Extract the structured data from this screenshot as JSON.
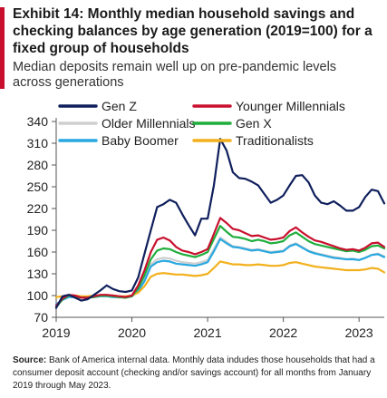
{
  "header": {
    "title": "Exhibit 14: Monthly median household savings and checking balances by age generation (2019=100)  for a fixed group of households",
    "subtitle": "Median deposits remain well up on pre-pandemic levels across generations"
  },
  "source": {
    "label": "Source:",
    "text": " Bank of America internal data. Monthly data indudes those households  that had a consumer deposit account  (checking  and/or savings account)  for all months from January 2019 through May 2023."
  },
  "colors": {
    "accent": "#c8102e"
  },
  "chart_data": {
    "type": "line",
    "title": "",
    "xlabel": "",
    "ylabel": "",
    "x": [
      "2019-01",
      "2019-02",
      "2019-03",
      "2019-04",
      "2019-05",
      "2019-06",
      "2019-07",
      "2019-08",
      "2019-09",
      "2019-10",
      "2019-11",
      "2019-12",
      "2020-01",
      "2020-02",
      "2020-03",
      "2020-04",
      "2020-05",
      "2020-06",
      "2020-07",
      "2020-08",
      "2020-09",
      "2020-10",
      "2020-11",
      "2020-12",
      "2021-01",
      "2021-02",
      "2021-03",
      "2021-04",
      "2021-05",
      "2021-06",
      "2021-07",
      "2021-08",
      "2021-09",
      "2021-10",
      "2021-11",
      "2021-12",
      "2022-01",
      "2022-02",
      "2022-03",
      "2022-04",
      "2022-05",
      "2022-06",
      "2022-07",
      "2022-08",
      "2022-09",
      "2022-10",
      "2022-11",
      "2022-12",
      "2023-01",
      "2023-02",
      "2023-03",
      "2023-04",
      "2023-05"
    ],
    "xticks": [
      "2019",
      "2020",
      "2021",
      "2022",
      "2023"
    ],
    "xlim": [
      "2019-01",
      "2023-05"
    ],
    "ylim": [
      70,
      340
    ],
    "yticks": [
      70,
      100,
      130,
      160,
      190,
      220,
      250,
      280,
      310,
      340
    ],
    "grid": false,
    "legend_position": "top",
    "series": [
      {
        "name": "Gen Z",
        "color": "#0f1f5c",
        "width": 2.2,
        "values": [
          83,
          99,
          101,
          97,
          93,
          95,
          101,
          107,
          114,
          109,
          106,
          105,
          107,
          125,
          158,
          190,
          222,
          226,
          232,
          228,
          212,
          197,
          183,
          206,
          206,
          252,
          316,
          300,
          270,
          262,
          261,
          257,
          252,
          240,
          228,
          232,
          238,
          252,
          265,
          266,
          256,
          238,
          228,
          226,
          230,
          224,
          217,
          217,
          222,
          236,
          246,
          244,
          227
        ]
      },
      {
        "name": "Younger Millennials",
        "color": "#c8102e",
        "width": 2.2,
        "values": [
          86,
          96,
          101,
          100,
          97,
          97,
          99,
          101,
          101,
          100,
          99,
          98,
          100,
          114,
          135,
          160,
          177,
          180,
          176,
          167,
          162,
          160,
          157,
          160,
          164,
          185,
          207,
          200,
          192,
          190,
          186,
          182,
          183,
          180,
          177,
          178,
          180,
          189,
          194,
          187,
          181,
          176,
          174,
          171,
          168,
          165,
          163,
          164,
          162,
          166,
          172,
          173,
          167
        ]
      },
      {
        "name": "Gen X",
        "color": "#1fae3c",
        "width": 2.2,
        "values": [
          84,
          95,
          100,
          99,
          97,
          97,
          98,
          100,
          100,
          99,
          98,
          97,
          99,
          110,
          128,
          150,
          162,
          165,
          164,
          160,
          157,
          155,
          153,
          156,
          160,
          178,
          196,
          188,
          181,
          180,
          178,
          175,
          177,
          175,
          172,
          173,
          175,
          183,
          187,
          181,
          175,
          171,
          169,
          167,
          165,
          163,
          161,
          162,
          160,
          163,
          168,
          169,
          165
        ]
      },
      {
        "name": "Older Millennials",
        "color": "#cfcfcf",
        "width": 2.2,
        "values": [
          84,
          94,
          99,
          98,
          97,
          97,
          98,
          99,
          99,
          98,
          97,
          97,
          99,
          108,
          122,
          143,
          150,
          152,
          151,
          148,
          146,
          145,
          144,
          146,
          149,
          164,
          180,
          174,
          168,
          167,
          165,
          163,
          164,
          162,
          160,
          161,
          162,
          169,
          172,
          167,
          162,
          159,
          157,
          155,
          153,
          152,
          150,
          151,
          149,
          152,
          156,
          158,
          154
        ]
      },
      {
        "name": "Baby Boomer",
        "color": "#29a8e0",
        "width": 2.2,
        "values": [
          88,
          94,
          98,
          98,
          97,
          97,
          98,
          99,
          99,
          98,
          98,
          98,
          99,
          106,
          120,
          140,
          146,
          148,
          147,
          144,
          143,
          142,
          141,
          143,
          146,
          161,
          178,
          172,
          167,
          166,
          164,
          162,
          163,
          161,
          159,
          160,
          161,
          168,
          171,
          166,
          161,
          158,
          156,
          154,
          152,
          151,
          150,
          150,
          149,
          152,
          156,
          157,
          153
        ]
      },
      {
        "name": "Traditionalists",
        "color": "#f2b01c",
        "width": 2.2,
        "values": [
          98,
          99,
          100,
          100,
          99,
          99,
          100,
          100,
          100,
          100,
          99,
          99,
          100,
          104,
          113,
          126,
          130,
          131,
          130,
          129,
          129,
          128,
          127,
          128,
          130,
          138,
          147,
          145,
          143,
          143,
          142,
          142,
          143,
          142,
          141,
          141,
          142,
          145,
          146,
          144,
          142,
          140,
          139,
          138,
          137,
          136,
          135,
          135,
          135,
          136,
          138,
          137,
          132
        ]
      }
    ]
  }
}
